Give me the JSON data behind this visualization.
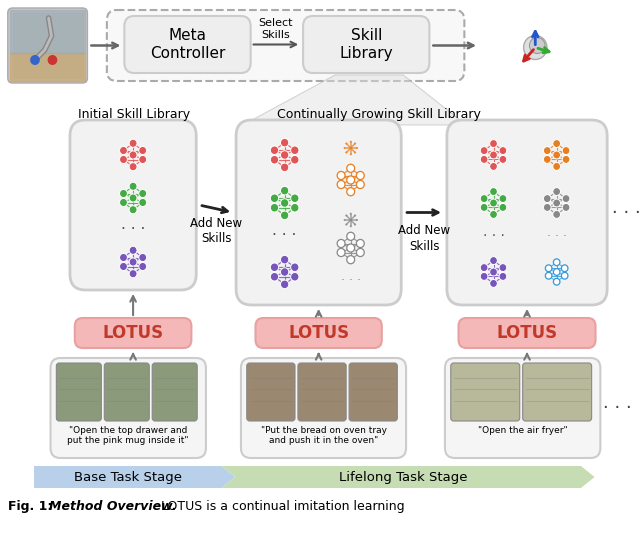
{
  "bg_color": "#ffffff",
  "lotus_box_color": "#f4b8b8",
  "lotus_text_color": "#c0392b",
  "skill_box_fc": "#f0f0f0",
  "skill_box_ec": "#cccccc",
  "top_dashed_fc": "#f5f5f5",
  "top_dashed_ec": "#aaaaaa",
  "meta_box_fc": "#eeeeee",
  "meta_box_ec": "#cccccc",
  "task_box_fc": "#f5f5f5",
  "task_box_ec": "#cccccc",
  "label1": "Initial Skill Library",
  "label2": "Continually Growing Skill Library",
  "lotus_label": "LOTUS",
  "meta_label": "Meta\nController",
  "skill_lib_label": "Skill\nLibrary",
  "select_skills_label": "Select\nSkills",
  "base_stage_label": "Base Task Stage",
  "lifelong_stage_label": "Lifelong Task Stage",
  "task1_text": "\"Open the top drawer and\nput the pink mug inside it\"",
  "task2_text": "\"Put the bread on oven tray\nand push it in the oven\"",
  "task3_text": "\"Open the air fryer\"",
  "add_new_skills": "Add New\nSkills",
  "col1_colors": [
    "#e05555",
    "#44aa44",
    "#7755bb"
  ],
  "col2_colors": [
    "#e67e22",
    "#888888",
    "#3399dd"
  ],
  "base_color": "#b8d0ea",
  "lifelong_color": "#c6ddb4",
  "arrow_color": "#555555",
  "fig_caption_bold": "Fig. 1: ",
  "fig_caption_italic_bold": "Method Overview.",
  "fig_caption_normal": " LOTUS is a continual imitation learning"
}
